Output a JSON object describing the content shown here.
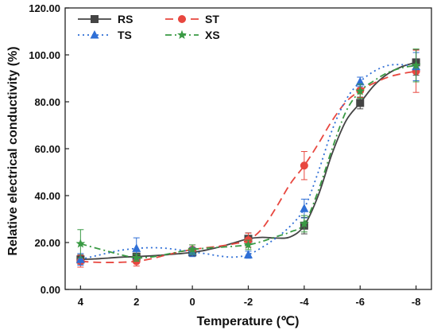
{
  "chart_data": {
    "type": "line",
    "xlabel": "Temperature (℃)",
    "ylabel": "Relative electrical conductivity (%)",
    "x": [
      "4",
      "2",
      "0",
      "-2",
      "-4",
      "-6",
      "-8"
    ],
    "ylim": [
      0,
      120
    ],
    "yticks": [
      "0.00",
      "20.00",
      "40.00",
      "60.00",
      "80.00",
      "100.00",
      "120.00"
    ],
    "grid": false,
    "legend": "top-left",
    "series": [
      {
        "name": "RS",
        "color": "#444444",
        "marker": "square",
        "dash": "solid",
        "values": [
          12.8,
          14.0,
          15.8,
          21.6,
          27.2,
          79.5,
          96.8
        ],
        "errors": [
          2.0,
          1.5,
          1.5,
          2.5,
          3.5,
          2.5,
          5.5
        ],
        "curve": [
          [
            4,
            12.8
          ],
          [
            3.5,
            13.0
          ],
          [
            3,
            13.4
          ],
          [
            2.5,
            13.8
          ],
          [
            2,
            14.0
          ],
          [
            1.5,
            14.3
          ],
          [
            1,
            14.7
          ],
          [
            0.5,
            15.2
          ],
          [
            0,
            15.8
          ],
          [
            -0.5,
            16.8
          ],
          [
            -1,
            18.2
          ],
          [
            -1.5,
            19.9
          ],
          [
            -2,
            21.6
          ],
          [
            -2.5,
            22.2
          ],
          [
            -3,
            21.9
          ],
          [
            -3.5,
            22.4
          ],
          [
            -4,
            27.2
          ],
          [
            -4.5,
            40
          ],
          [
            -5,
            58
          ],
          [
            -5.5,
            72
          ],
          [
            -6,
            79.5
          ],
          [
            -6.5,
            87
          ],
          [
            -7,
            92
          ],
          [
            -7.5,
            95
          ],
          [
            -8,
            96.8
          ]
        ]
      },
      {
        "name": "ST",
        "color": "#e8473f",
        "marker": "circle",
        "dash": "10,6",
        "values": [
          12.0,
          12.0,
          17.0,
          21.0,
          52.8,
          84.8,
          93.0
        ],
        "errors": [
          2.5,
          2.0,
          2.0,
          3.0,
          6.0,
          3.0,
          9.0
        ],
        "curve": [
          [
            4,
            12.0
          ],
          [
            3.5,
            11.6
          ],
          [
            3,
            11.5
          ],
          [
            2.5,
            11.6
          ],
          [
            2,
            12.0
          ],
          [
            1.5,
            13.0
          ],
          [
            1,
            14.5
          ],
          [
            0.5,
            15.9
          ],
          [
            0,
            17.0
          ],
          [
            -0.5,
            17.8
          ],
          [
            -1,
            18.5
          ],
          [
            -1.5,
            19.5
          ],
          [
            -2,
            21.0
          ],
          [
            -2.5,
            26
          ],
          [
            -3,
            35
          ],
          [
            -3.5,
            45
          ],
          [
            -4,
            52.8
          ],
          [
            -4.5,
            62
          ],
          [
            -5,
            72
          ],
          [
            -5.5,
            80
          ],
          [
            -6,
            84.8
          ],
          [
            -6.5,
            88
          ],
          [
            -7,
            90.5
          ],
          [
            -7.5,
            92
          ],
          [
            -8,
            93.0
          ]
        ]
      },
      {
        "name": "TS",
        "color": "#2f6fd6",
        "marker": "triangle",
        "dash": "2,4",
        "values": [
          12.8,
          17.5,
          16.0,
          14.8,
          34.5,
          88.5,
          95.0
        ],
        "errors": [
          2.5,
          4.5,
          2.0,
          1.5,
          4.0,
          2.0,
          6.0
        ],
        "curve": [
          [
            4,
            12.8
          ],
          [
            3.5,
            14.2
          ],
          [
            3,
            15.6
          ],
          [
            2.5,
            16.8
          ],
          [
            2,
            17.5
          ],
          [
            1.5,
            17.8
          ],
          [
            1,
            17.6
          ],
          [
            0.5,
            16.9
          ],
          [
            0,
            16.0
          ],
          [
            -0.5,
            15.2
          ],
          [
            -1,
            14.2
          ],
          [
            -1.5,
            13.8
          ],
          [
            -2,
            14.8
          ],
          [
            -2.5,
            18
          ],
          [
            -3,
            22
          ],
          [
            -3.5,
            27
          ],
          [
            -4,
            34.5
          ],
          [
            -4.5,
            50
          ],
          [
            -5,
            68
          ],
          [
            -5.5,
            81
          ],
          [
            -6,
            88.5
          ],
          [
            -6.5,
            93
          ],
          [
            -7,
            95.5
          ],
          [
            -7.5,
            95.8
          ],
          [
            -8,
            95.0
          ]
        ]
      },
      {
        "name": "XS",
        "color": "#3a9a44",
        "marker": "star",
        "dash": "8,4,2,4",
        "values": [
          19.5,
          13.5,
          17.0,
          19.0,
          28.0,
          84.5,
          95.5
        ],
        "errors": [
          6.0,
          1.5,
          2.0,
          2.0,
          3.5,
          3.0,
          7.0
        ],
        "curve": [
          [
            4,
            19.5
          ],
          [
            3.5,
            17.8
          ],
          [
            3,
            16.2
          ],
          [
            2.5,
            14.6
          ],
          [
            2,
            13.5
          ],
          [
            1.5,
            13.8
          ],
          [
            1,
            14.8
          ],
          [
            0.5,
            16.0
          ],
          [
            0,
            17.0
          ],
          [
            -0.5,
            17.6
          ],
          [
            -1,
            18.0
          ],
          [
            -1.5,
            18.4
          ],
          [
            -2,
            19.0
          ],
          [
            -2.5,
            20.5
          ],
          [
            -3,
            22.5
          ],
          [
            -3.5,
            24.5
          ],
          [
            -4,
            28.0
          ],
          [
            -4.5,
            42
          ],
          [
            -5,
            60
          ],
          [
            -5.5,
            76
          ],
          [
            -6,
            84.5
          ],
          [
            -6.5,
            89
          ],
          [
            -7,
            92.5
          ],
          [
            -7.5,
            94.5
          ],
          [
            -8,
            95.5
          ]
        ]
      }
    ]
  }
}
